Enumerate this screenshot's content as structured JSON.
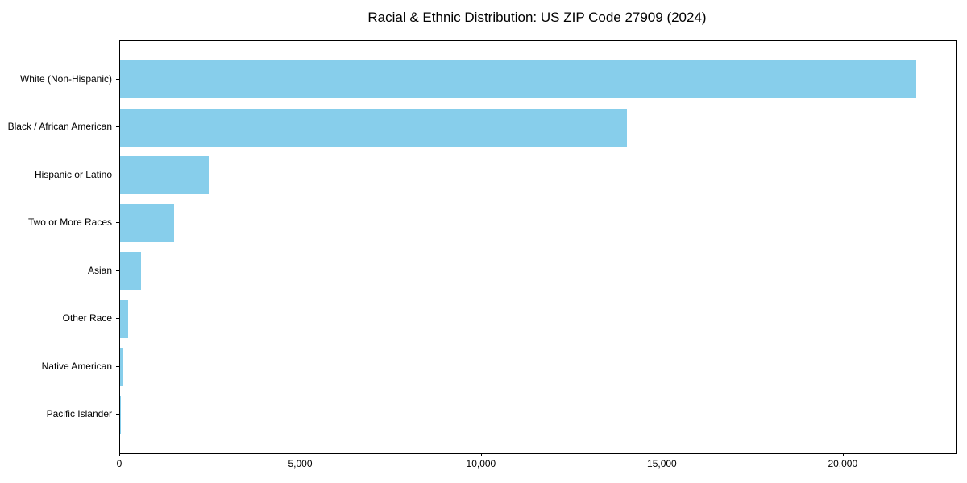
{
  "chart_data": {
    "type": "bar",
    "orientation": "horizontal",
    "title": "Racial & Ethnic Distribution: US ZIP Code 27909 (2024)",
    "categories": [
      "White (Non-Hispanic)",
      "Black / African American",
      "Hispanic or Latino",
      "Two or More Races",
      "Asian",
      "Other Race",
      "Native American",
      "Pacific Islander"
    ],
    "values": [
      22000,
      14000,
      2450,
      1500,
      575,
      220,
      85,
      20
    ],
    "xlabel": "",
    "ylabel": "",
    "xlim": [
      0,
      23100
    ],
    "x_ticks": [
      0,
      5000,
      10000,
      15000,
      20000
    ],
    "x_tick_labels": [
      "0",
      "5,000",
      "10,000",
      "15,000",
      "20,000"
    ],
    "bar_color": "#87CEEB",
    "background_color": "#ffffff",
    "spine_color": "#000000",
    "text_color": "#000000",
    "grid": false,
    "legend": false
  }
}
